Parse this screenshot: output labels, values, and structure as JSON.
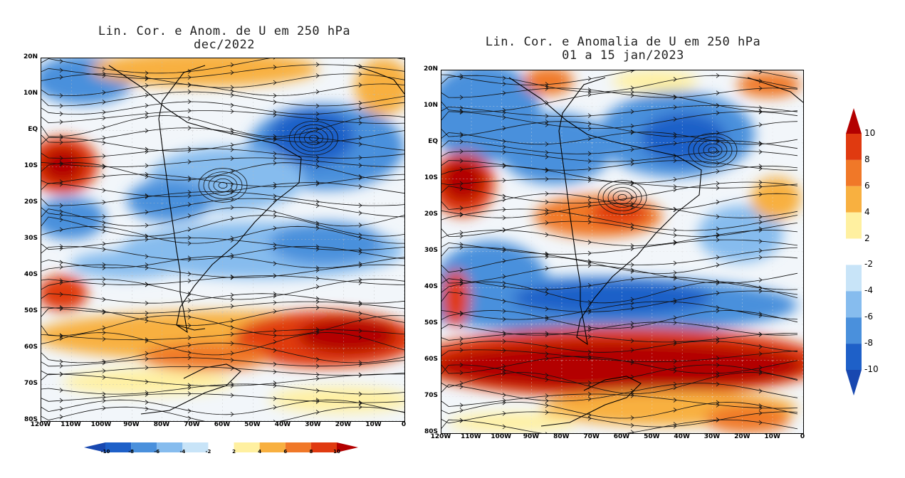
{
  "left_panel": {
    "title_line1": "Lin. Cor. e Anom. de U em 250 hPa",
    "title_line2": "dec/2022"
  },
  "right_panel": {
    "title_line1": "Lin. Cor. e Anomalia de U em 250 hPa",
    "title_line2": "01 a 15 jan/2023"
  },
  "lat_labels": [
    "20N",
    "10N",
    "EQ",
    "10S",
    "20S",
    "30S",
    "40S",
    "50S",
    "60S",
    "70S",
    "80S"
  ],
  "lon_labels": [
    "120W",
    "110W",
    "100W",
    "90W",
    "80W",
    "70W",
    "60W",
    "50W",
    "40W",
    "30W",
    "20W",
    "10W",
    "0"
  ],
  "colorbar": {
    "labels": [
      "10",
      "8",
      "6",
      "4",
      "2",
      "-2",
      "-4",
      "-6",
      "-8",
      "-10"
    ],
    "colors": [
      "#b30000",
      "#e03a10",
      "#f07828",
      "#f8b040",
      "#fff0a0",
      "#ffffff",
      "#c8e4f8",
      "#86bcee",
      "#4a90dc",
      "#1e60c8",
      "#1848b0"
    ]
  },
  "horizontal_colorbar": {
    "labels": [
      "-10",
      "-8",
      "-6",
      "-4",
      "-2",
      "2",
      "4",
      "6",
      "8",
      "10"
    ]
  }
}
